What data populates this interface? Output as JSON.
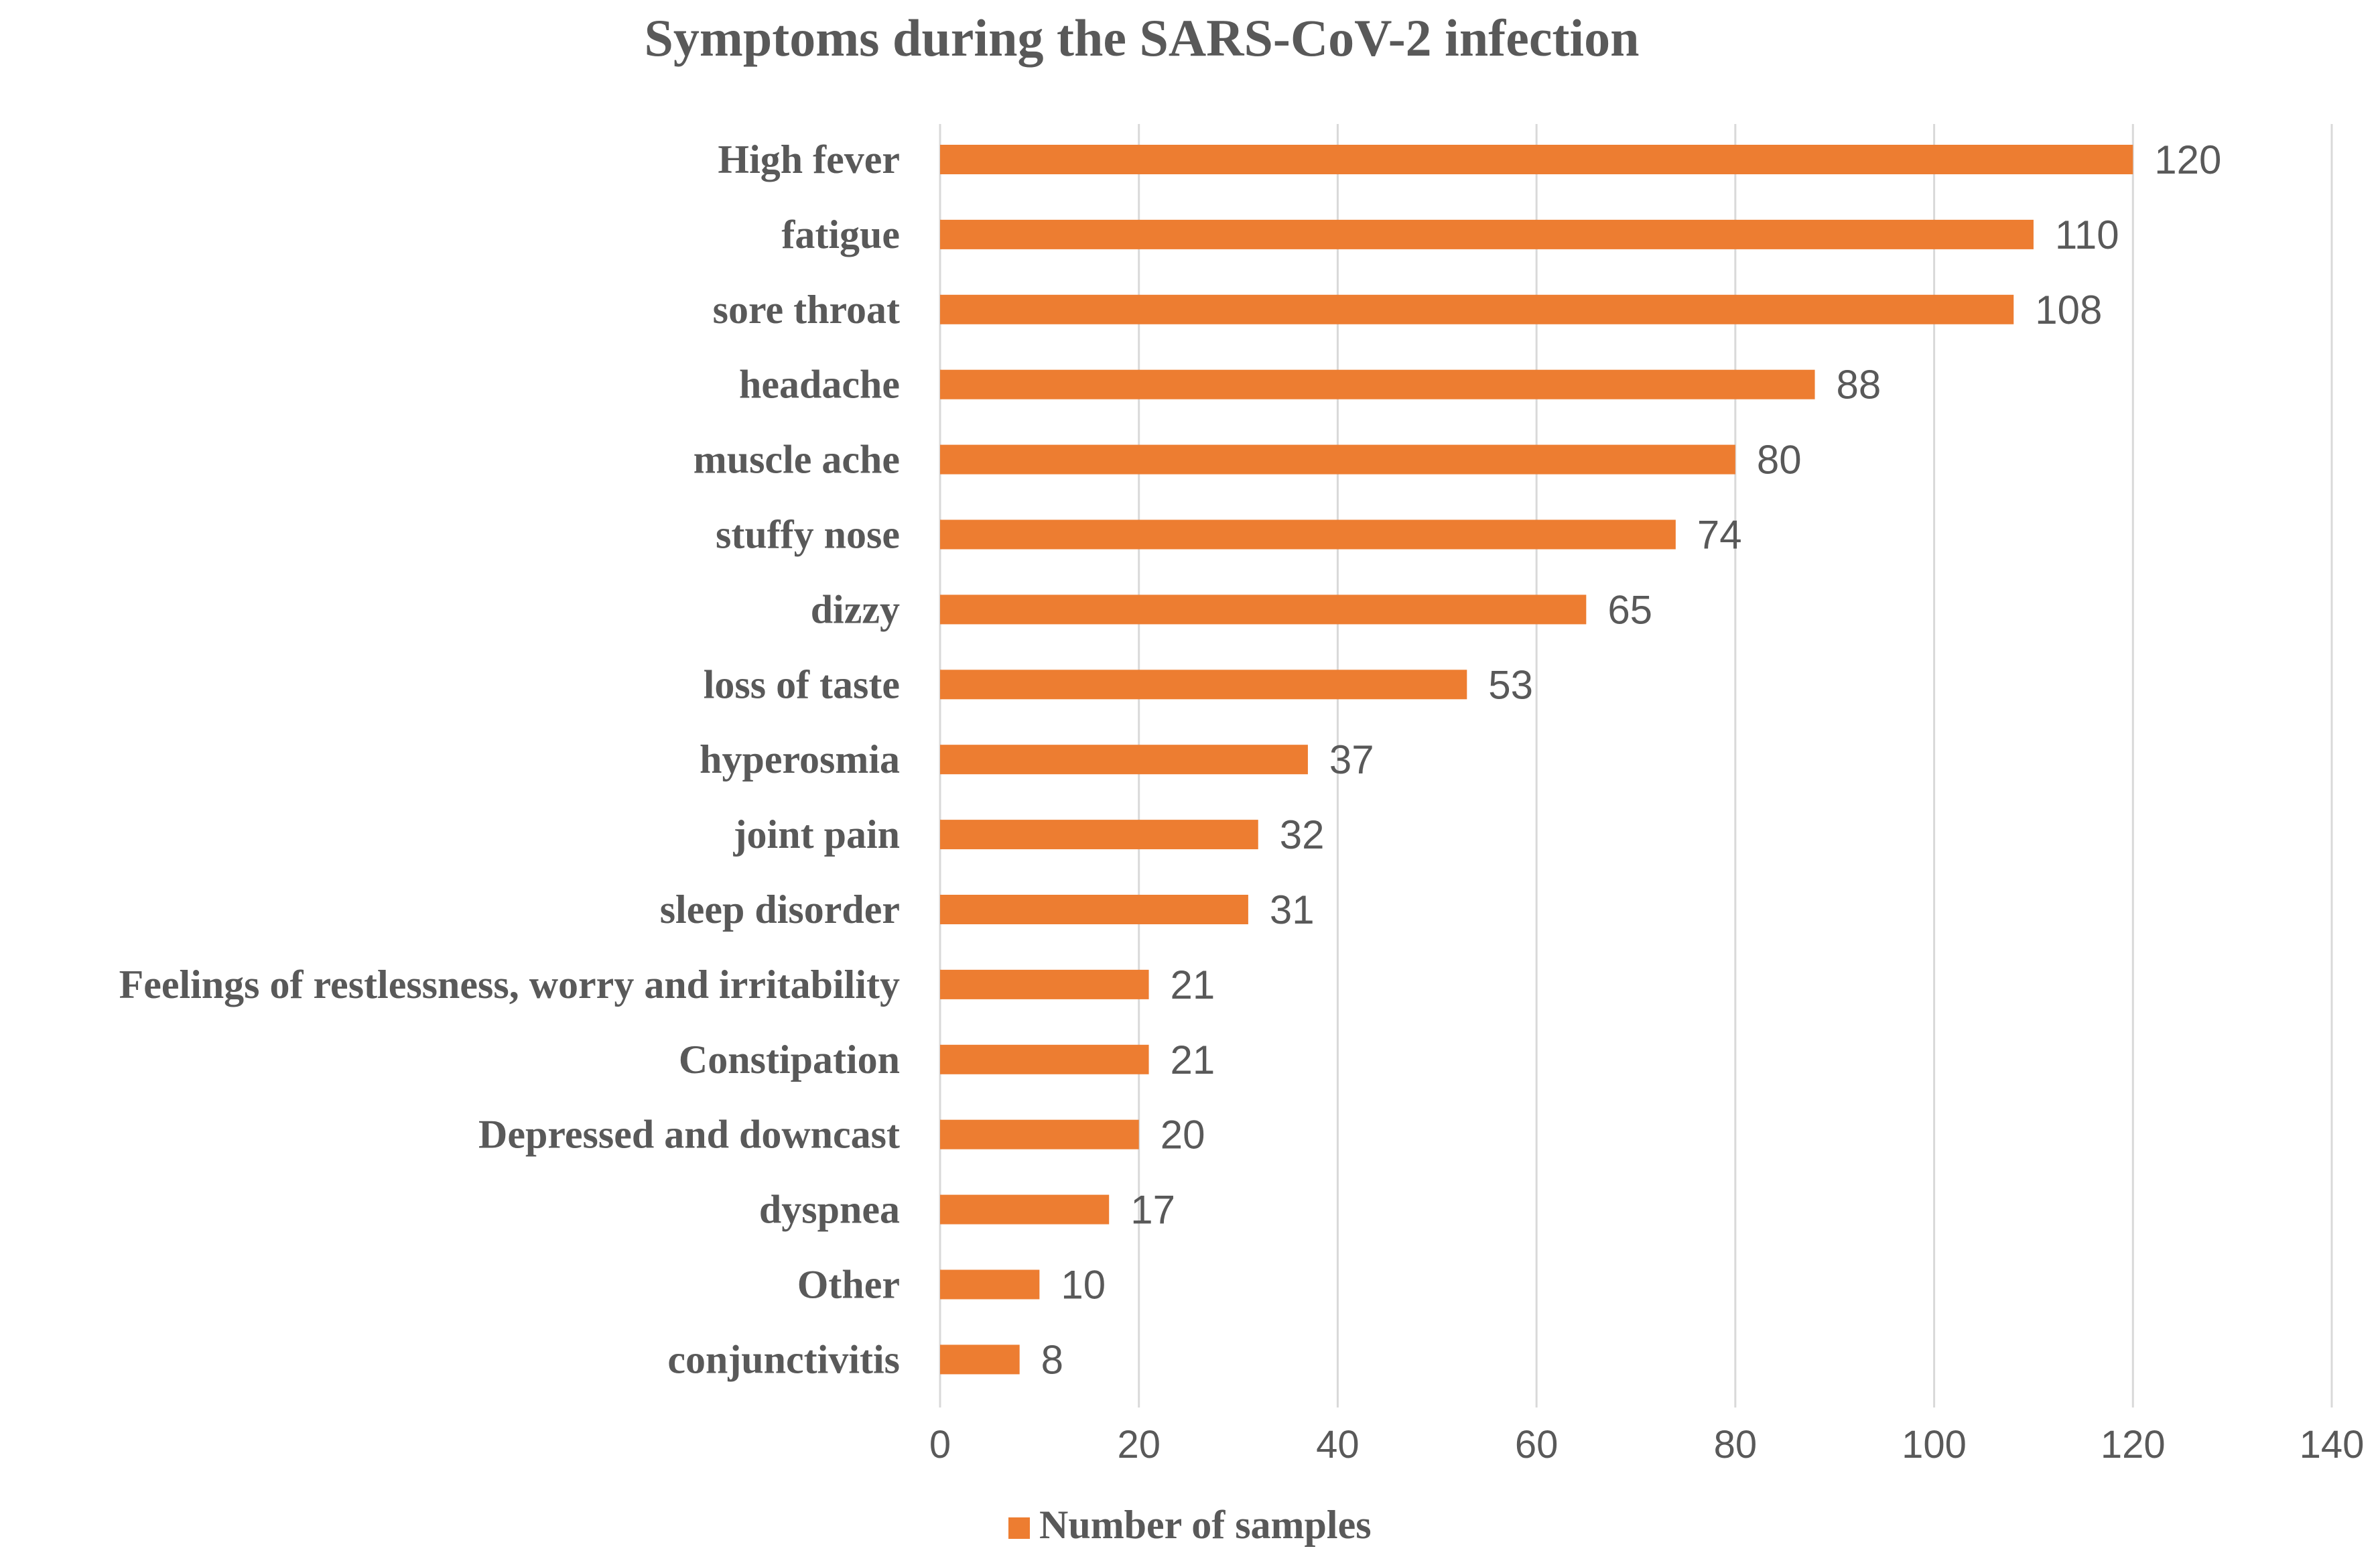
{
  "chart_data": {
    "type": "bar",
    "orientation": "horizontal",
    "title": "Symptoms during the SARS-CoV-2 infection",
    "categories": [
      "High fever",
      "fatigue",
      "sore throat",
      "headache",
      "muscle ache",
      "stuffy nose",
      "dizzy",
      "loss of taste",
      "hyperosmia",
      "joint pain",
      "sleep disorder",
      "Feelings of restlessness, worry and irritability",
      "Constipation",
      "Depressed and downcast",
      "dyspnea",
      "Other",
      "conjunctivitis"
    ],
    "series": [
      {
        "name": "Number of samples",
        "color": "#ED7D31",
        "values": [
          120,
          110,
          108,
          88,
          80,
          74,
          65,
          53,
          37,
          32,
          31,
          21,
          21,
          20,
          17,
          10,
          8
        ]
      }
    ],
    "xlim": [
      0,
      140
    ],
    "xticks": [
      0,
      20,
      40,
      60,
      80,
      100,
      120,
      140
    ],
    "grid": "vertical",
    "legend": "bottom-center",
    "data_labels": true,
    "colors": {
      "bar": "#ED7D31",
      "grid": "#D9D9D9",
      "text": "#595959"
    }
  }
}
